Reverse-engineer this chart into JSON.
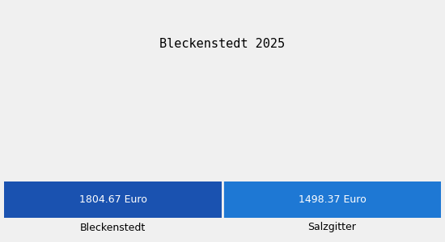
{
  "title": "Bleckenstedt 2025",
  "categories": [
    "Bleckenstedt",
    "Salzgitter"
  ],
  "values": [
    1804.67,
    1498.37
  ],
  "bar_labels": [
    "1804.67 Euro",
    "1498.37 Euro"
  ],
  "bar_colors": [
    "#1a52b0",
    "#1e78d4"
  ],
  "background_color": "#f0f0f0",
  "title_fontsize": 11,
  "tick_fontsize": 9,
  "bar_label_fontsize": 9,
  "fig_width": 5.5,
  "fig_height": 3.0,
  "dpi": 100
}
